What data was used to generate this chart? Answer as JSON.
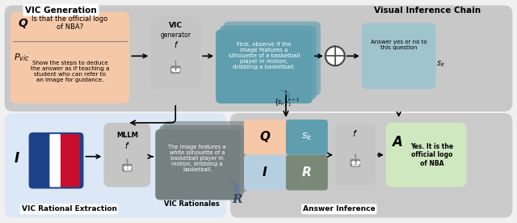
{
  "fig_width": 6.4,
  "fig_height": 2.76,
  "dpi": 100,
  "bg_color": "#f0f0f0",
  "top_bg": "#c8c8c8",
  "bottom_left_bg": "#dce8f5",
  "bottom_right_bg": "#cacaca",
  "vic_gen_label": "VIC Generation",
  "vic_rat_label": "VIC Rational Extraction",
  "ans_inf_label": "Answer Inference",
  "vic_chain_label": "Visual Inference Chain",
  "vic_rat_text_label": "VIC Rationales",
  "q_box_color": "#f5c8a8",
  "q_text": "Is that the official logo\nof NBA?",
  "pvic_text": "Show the steps to deduce\nthe answer as if teaching a\nstudent who can refer to\nan image for guidance.",
  "vic_gen_box_color": "#c5c5c5",
  "vic_chain_box_color": "#5f9eae",
  "vic_chain_text": "First, observe if the\nimage features a\nsilhouette of a basketball\nplayer in motion,\ndribbling a basketball.",
  "sk_box_color": "#9fc4cc",
  "sk_text": "Answer yes or no to\nthis question",
  "mllm_box_color": "#c5c5c5",
  "rat_box_color": "#758080",
  "rat_text": "The image features a\nwhite silhouette of a\nbasketball player in\nmotion, dribbling a\nbasketball.",
  "ans_grid_q_color": "#f5c8a8",
  "ans_grid_sk_color": "#5f9eae",
  "ans_grid_i_color": "#b5cfe0",
  "ans_grid_r_color": "#7a8878",
  "fp_box_color": "#c5c5c5",
  "ans_box_color": "#d0e8c0",
  "ans_text": "Yes. It is the\nofficial logo\nof NBA",
  "nba_blue": "#1d428a",
  "nba_red": "#c8102e"
}
